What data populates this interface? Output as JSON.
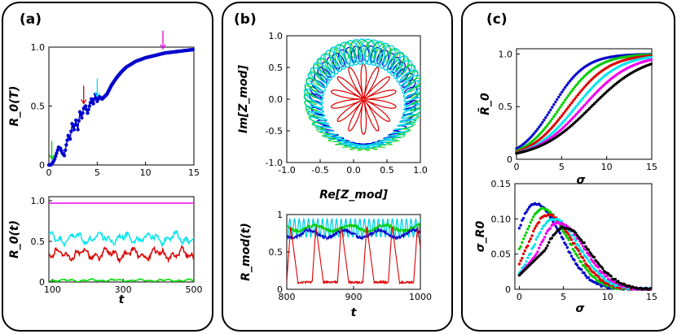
{
  "panels": {
    "a": "(a)",
    "b": "(b)",
    "c": "(c)"
  },
  "chart_data": [
    {
      "id": "a-top",
      "type": "line",
      "title": "",
      "ylabel": "R_0(T)",
      "xlabel": "",
      "xlim": [
        0,
        15
      ],
      "ylim": [
        0,
        1
      ],
      "xticks": [
        "0",
        "5",
        "10",
        "15"
      ],
      "yticks": [
        "0",
        "0.5",
        "1.0"
      ],
      "series": [
        {
          "color": "#0000cc",
          "x": [
            0,
            0.2,
            0.4,
            0.6,
            0.8,
            1.0,
            1.2,
            1.4,
            1.6,
            1.8,
            2.0,
            2.2,
            2.4,
            2.6,
            2.8,
            3.0,
            3.2,
            3.4,
            3.6,
            3.8,
            4.0,
            4.2,
            4.4,
            4.6,
            4.8,
            5.0,
            5.2,
            5.5,
            6.0,
            6.5,
            7.0,
            7.5,
            8.0,
            9.0,
            10.0,
            11.0,
            12.0,
            13.0,
            14.0,
            15.0
          ],
          "y": [
            0.0,
            0.0,
            0.02,
            0.05,
            0.1,
            0.15,
            0.14,
            0.1,
            0.08,
            0.17,
            0.25,
            0.22,
            0.35,
            0.3,
            0.38,
            0.3,
            0.45,
            0.4,
            0.48,
            0.5,
            0.44,
            0.5,
            0.56,
            0.52,
            0.6,
            0.54,
            0.58,
            0.56,
            0.6,
            0.68,
            0.74,
            0.79,
            0.83,
            0.88,
            0.91,
            0.93,
            0.95,
            0.96,
            0.97,
            0.98
          ]
        }
      ],
      "arrows": [
        {
          "x": 0.3,
          "color": "#00cc00"
        },
        {
          "x": 3.6,
          "color": "#dd0000"
        },
        {
          "x": 5.0,
          "color": "#00e5ee"
        },
        {
          "x": 11.8,
          "color": "#dd00dd"
        }
      ]
    },
    {
      "id": "a-bottom",
      "type": "line",
      "ylabel": "R_0(t)",
      "xlabel": "t",
      "xlim": [
        90,
        500
      ],
      "ylim": [
        0,
        1.05
      ],
      "xticks": [
        "100",
        "300",
        "500"
      ],
      "yticks": [
        "0",
        "0.5",
        "1.0"
      ],
      "series": [
        {
          "color": "#ee00ee",
          "level": 0.97,
          "amp": 0.0
        },
        {
          "color": "#00e5ee",
          "level": 0.54,
          "amp": 0.07
        },
        {
          "color": "#dd0000",
          "level": 0.34,
          "amp": 0.07
        },
        {
          "color": "#00dd00",
          "level": 0.02,
          "amp": 0.015
        }
      ]
    },
    {
      "id": "b-top",
      "type": "scatter",
      "xlabel": "Re[Z_mod]",
      "ylabel": "Im[Z_mod]",
      "xlim": [
        -1.0,
        1.0
      ],
      "ylim": [
        -1.0,
        1.0
      ],
      "xticks": [
        "-1.0",
        "-0.5",
        "0.0",
        "0.5",
        "1.0"
      ],
      "yticks": [
        "-1.0",
        "-0.5",
        "0.0",
        "0.5",
        "1.0"
      ],
      "series": [
        {
          "color": "#00d0e8",
          "radius": 0.75
        },
        {
          "color": "#0000cc",
          "radius": 0.72
        },
        {
          "color": "#dd0000",
          "radius": 0.45
        },
        {
          "color": "#00cc00",
          "radius": 0.8
        }
      ]
    },
    {
      "id": "b-bottom",
      "type": "line",
      "xlabel": "t",
      "ylabel": "R_mod(t)",
      "xlim": [
        800,
        1000
      ],
      "ylim": [
        0,
        1.0
      ],
      "xticks": [
        "800",
        "900",
        "1000"
      ],
      "yticks": [
        "0",
        "0.5",
        "1"
      ],
      "series": [
        {
          "color": "#00d0e8",
          "level": 0.82,
          "amp": 0.12
        },
        {
          "color": "#00cc00",
          "level": 0.82,
          "amp": 0.04
        },
        {
          "color": "#0000cc",
          "level": 0.74,
          "amp": 0.05
        },
        {
          "color": "#dd0000",
          "level": 0.55,
          "amp": 0.45
        }
      ]
    },
    {
      "id": "c-top",
      "type": "scatter",
      "xlabel": "σ",
      "ylabel": "R̄_0",
      "xlim": [
        0,
        15
      ],
      "ylim": [
        0,
        1.05
      ],
      "xticks": [
        "0",
        "5",
        "10",
        "15"
      ],
      "yticks": [
        "0",
        "0.5",
        "1.0"
      ],
      "series": [
        {
          "color": "#0000cc",
          "x0": 4.0,
          "k": 0.55
        },
        {
          "color": "#00cc00",
          "x0": 4.9,
          "k": 0.5
        },
        {
          "color": "#dd0000",
          "x0": 5.8,
          "k": 0.45
        },
        {
          "color": "#00e5ee",
          "x0": 6.6,
          "k": 0.42
        },
        {
          "color": "#ee00ee",
          "x0": 7.4,
          "k": 0.38
        },
        {
          "color": "#000000",
          "x0": 8.3,
          "k": 0.34
        }
      ]
    },
    {
      "id": "c-bottom",
      "type": "scatter",
      "xlabel": "σ",
      "ylabel": "σ_R0",
      "xlim": [
        -0.5,
        15
      ],
      "ylim": [
        0,
        0.15
      ],
      "xticks": [
        "0",
        "5",
        "10",
        "15"
      ],
      "yticks": [
        "0",
        "0.05",
        "0.10",
        "0.15"
      ],
      "series": [
        {
          "color": "#0000cc",
          "peak_x": 1.8,
          "peak_y": 0.122
        },
        {
          "color": "#00cc00",
          "peak_x": 2.6,
          "peak_y": 0.114
        },
        {
          "color": "#dd0000",
          "peak_x": 3.2,
          "peak_y": 0.106
        },
        {
          "color": "#00e5ee",
          "peak_x": 3.8,
          "peak_y": 0.1
        },
        {
          "color": "#ee00ee",
          "peak_x": 4.4,
          "peak_y": 0.095
        },
        {
          "color": "#000000",
          "peak_x": 5.0,
          "peak_y": 0.088
        }
      ]
    }
  ]
}
